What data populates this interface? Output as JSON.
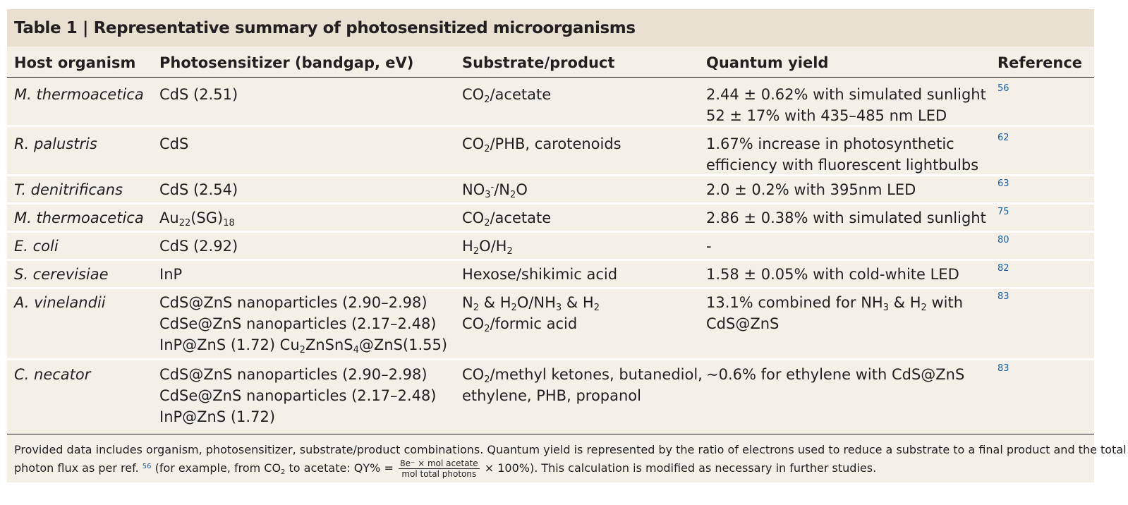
{
  "table": {
    "title": "Table 1 | Representative summary of photosensitized microorganisms",
    "headers": {
      "host": "Host organism",
      "photosensitizer": "Photosensitizer (bandgap, eV)",
      "substrate": "Substrate/product",
      "quantum_yield": "Quantum yield",
      "reference": "Reference"
    },
    "rows": [
      {
        "host": "M. thermoacetica",
        "photosensitizer": [
          "CdS (2.51)"
        ],
        "substrate": [
          "CO<sub>2</sub>/acetate"
        ],
        "quantum_yield": [
          "2.44 ± 0.62% with simulated sunlight",
          "52 ± 17% with 435–485 nm LED"
        ],
        "reference": "56"
      },
      {
        "host": "R. palustris",
        "photosensitizer": [
          "CdS"
        ],
        "substrate": [
          "CO<sub>2</sub>/PHB, carotenoids"
        ],
        "quantum_yield": [
          "1.67% increase in photosynthetic",
          "efficiency with fluorescent lightbulbs"
        ],
        "reference": "62"
      },
      {
        "host": "T. denitrificans",
        "photosensitizer": [
          "CdS (2.54)"
        ],
        "substrate": [
          "NO<sub>3</sub><sup>-</sup>/N<sub>2</sub>O"
        ],
        "quantum_yield": [
          "2.0 ± 0.2% with 395nm LED"
        ],
        "reference": "63"
      },
      {
        "host": "M. thermoacetica",
        "photosensitizer": [
          "Au<sub>22</sub>(SG)<sub>18</sub>"
        ],
        "substrate": [
          "CO<sub>2</sub>/acetate"
        ],
        "quantum_yield": [
          "2.86 ± 0.38% with simulated sunlight"
        ],
        "reference": "75"
      },
      {
        "host": "E. coli",
        "photosensitizer": [
          "CdS (2.92)"
        ],
        "substrate": [
          "H<sub>2</sub>O/H<sub>2</sub>"
        ],
        "quantum_yield": [
          "-"
        ],
        "reference": "80"
      },
      {
        "host": "S. cerevisiae",
        "photosensitizer": [
          "InP"
        ],
        "substrate": [
          "Hexose/shikimic acid"
        ],
        "quantum_yield": [
          "1.58 ± 0.05% with cold-white LED"
        ],
        "reference": "82"
      },
      {
        "host": "A. vinelandii",
        "photosensitizer": [
          "CdS@ZnS nanoparticles (2.90–2.98)",
          "CdSe@ZnS nanoparticles (2.17–2.48)",
          "InP@ZnS (1.72) Cu<sub>2</sub>ZnSnS<sub>4</sub>@ZnS(1.55)"
        ],
        "substrate": [
          "N<sub>2</sub> &amp; H<sub>2</sub>O/NH<sub>3</sub> &amp; H<sub>2</sub>",
          "CO<sub>2</sub>/formic acid"
        ],
        "quantum_yield": [
          "13.1% combined for NH<sub>3</sub> &amp; H<sub>2</sub> with",
          "CdS@ZnS"
        ],
        "reference": "83"
      },
      {
        "host": "C. necator",
        "photosensitizer": [
          "CdS@ZnS nanoparticles (2.90–2.98)",
          "CdSe@ZnS nanoparticles (2.17–2.48)",
          "InP@ZnS (1.72)"
        ],
        "substrate": [
          "CO<sub>2</sub>/methyl ketones, butanediol,",
          "ethylene, PHB, propanol"
        ],
        "quantum_yield": [
          "~0.6% for ethylene with CdS@ZnS"
        ],
        "reference": "83"
      }
    ],
    "footnote": {
      "line1": "Provided data includes organism, photosensitizer, substrate/product combinations. Quantum yield is represented by the ratio of electrons used to reduce a substrate to a final product and the total input",
      "line2_a": "photon flux as per ref.",
      "line2_ref": "56",
      "line2_b": "(for example, from CO",
      "line2_sub": "2",
      "line2_c": "to acetate: QY% =",
      "frac_num": "8e⁻ × mol acetate",
      "frac_den": "mol total photons",
      "line2_d": "× 100%). This calculation is modified as necessary in further studies."
    }
  }
}
